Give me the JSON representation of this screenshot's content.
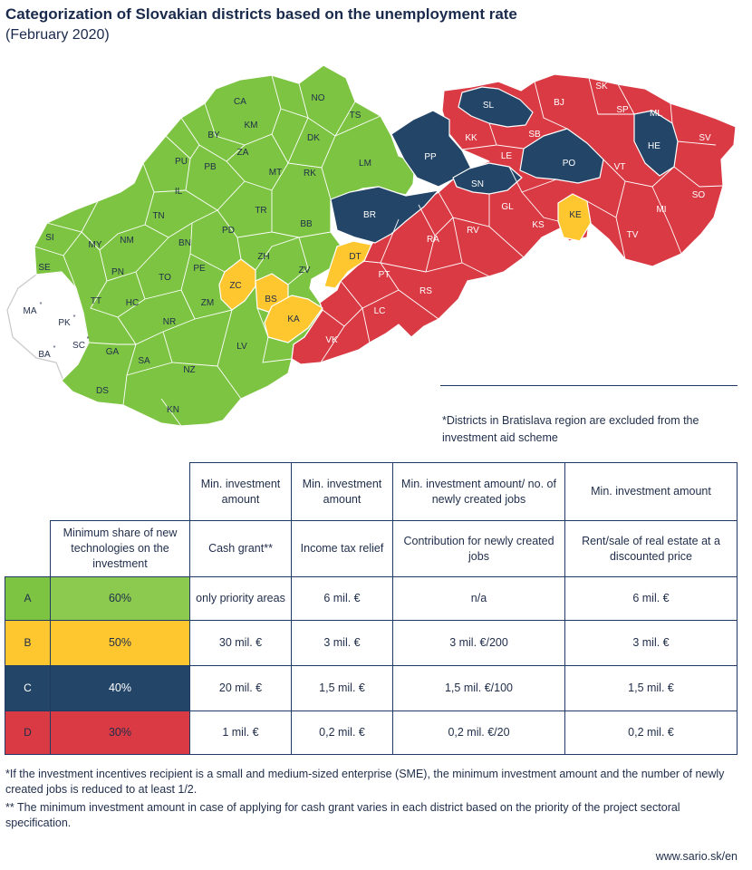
{
  "title": "Categorization of Slovakian districts based on the unemployment rate",
  "subtitle": "(February 2020)",
  "colors": {
    "A": "#7dc443",
    "B": "#ffc72f",
    "C": "#234567",
    "D": "#d93a44",
    "excluded": "#ffffff"
  },
  "districts": {
    "A": [
      "CA",
      "NO",
      "KM",
      "TS",
      "BY",
      "ZA",
      "DK",
      "PU",
      "PB",
      "MT",
      "RK",
      "LM",
      "IL",
      "TR",
      "TN",
      "PD",
      "BB",
      "SI",
      "MY",
      "NM",
      "BN",
      "SE",
      "PN",
      "PE",
      "ZH",
      "TO",
      "ZV",
      "TT",
      "HC",
      "ZM",
      "NR",
      "GA",
      "SA",
      "LV",
      "NZ",
      "DS",
      "KN"
    ],
    "B": [
      "ZC",
      "BS",
      "KA",
      "DT",
      "KE"
    ],
    "C": [
      "SL",
      "PP",
      "HE",
      "PO",
      "SN",
      "BR"
    ],
    "D": [
      "BJ",
      "SK",
      "SP",
      "ML",
      "KK",
      "SB",
      "SV",
      "LE",
      "VT",
      "SO",
      "GL",
      "MI",
      "RV",
      "KS",
      "RA",
      "TV",
      "PT",
      "RS",
      "LC",
      "VK"
    ],
    "excluded": [
      "MA",
      "PK",
      "SC",
      "BA"
    ]
  },
  "excluded_marker": "*",
  "map_note": "*Districts in Bratislava region are excluded from the investment aid scheme",
  "table": {
    "top_headers": [
      "Min. investment amount",
      "Min. investment amount",
      "Min. investment amount/ no. of newly created jobs",
      "Min. investment amount"
    ],
    "share_header": "Minimum share of new technologies on the investment",
    "sub_headers": [
      "Cash grant**",
      "Income tax relief",
      "Contribution for newly created jobs",
      "Rent/sale of real estate at a discounted price"
    ],
    "rows": [
      {
        "cat": "A",
        "share": "60%",
        "values": [
          "only priority areas",
          "6 mil. €",
          "n/a",
          "6 mil. €"
        ]
      },
      {
        "cat": "B",
        "share": "50%",
        "values": [
          "30 mil. €",
          "3 mil. €",
          "3 mil. €/200",
          "3 mil. €"
        ]
      },
      {
        "cat": "C",
        "share": "40%",
        "values": [
          "20 mil. €",
          "1,5 mil. €",
          "1,5 mil. €/100",
          "1,5 mil. €"
        ]
      },
      {
        "cat": "D",
        "share": "30%",
        "values": [
          "1 mil. €",
          "0,2 mil. €",
          "0,2 mil. €/20",
          "0,2 mil. €"
        ]
      }
    ]
  },
  "footnotes": [
    "*If the investment incentives recipient is a small and medium-sized enterprise (SME), the minimum investment amount and the number of newly created jobs is reduced to at least 1/2.",
    "** The minimum investment amount in case of applying for cash grant varies in each district based on the priority of the project sectoral specification."
  ],
  "url": "www.sario.sk/en"
}
